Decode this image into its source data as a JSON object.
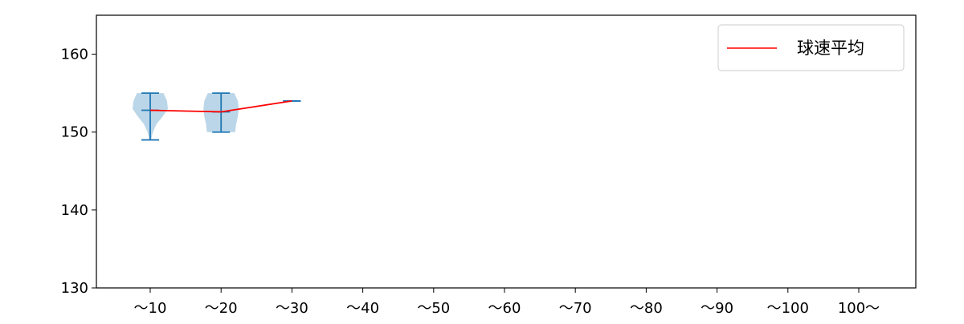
{
  "chart_data": {
    "type": "violin",
    "categories": [
      "～10",
      "～20",
      "～30",
      "～40",
      "～50",
      "～60",
      "～70",
      "～80",
      "～90",
      "～100",
      "100～"
    ],
    "ylim": [
      130,
      165
    ],
    "yticks": [
      130,
      140,
      150,
      160
    ],
    "grid": false,
    "legend": {
      "placement": "top-right",
      "entries": [
        "球速平均"
      ]
    },
    "violins": [
      {
        "category": "～10",
        "min": 149,
        "max": 155,
        "median": 152.8,
        "density": [
          0.05,
          0.15,
          0.35,
          0.7,
          1.0,
          0.95,
          0.75
        ]
      },
      {
        "category": "～20",
        "min": 150,
        "max": 155,
        "median": 152.6,
        "density": [
          0.8,
          0.85,
          0.95,
          1.0,
          0.95,
          0.75
        ]
      },
      {
        "category": "～30",
        "min": 154,
        "max": 154,
        "median": 154,
        "density": []
      }
    ],
    "mean_series": {
      "name": "球速平均",
      "x": [
        "～10",
        "～20",
        "～30"
      ],
      "y": [
        152.8,
        152.6,
        154.0
      ]
    },
    "colors": {
      "violin_fill": "#1f77b4",
      "violin_edge": "#1f77b4",
      "mean_line": "#ff0000"
    }
  }
}
